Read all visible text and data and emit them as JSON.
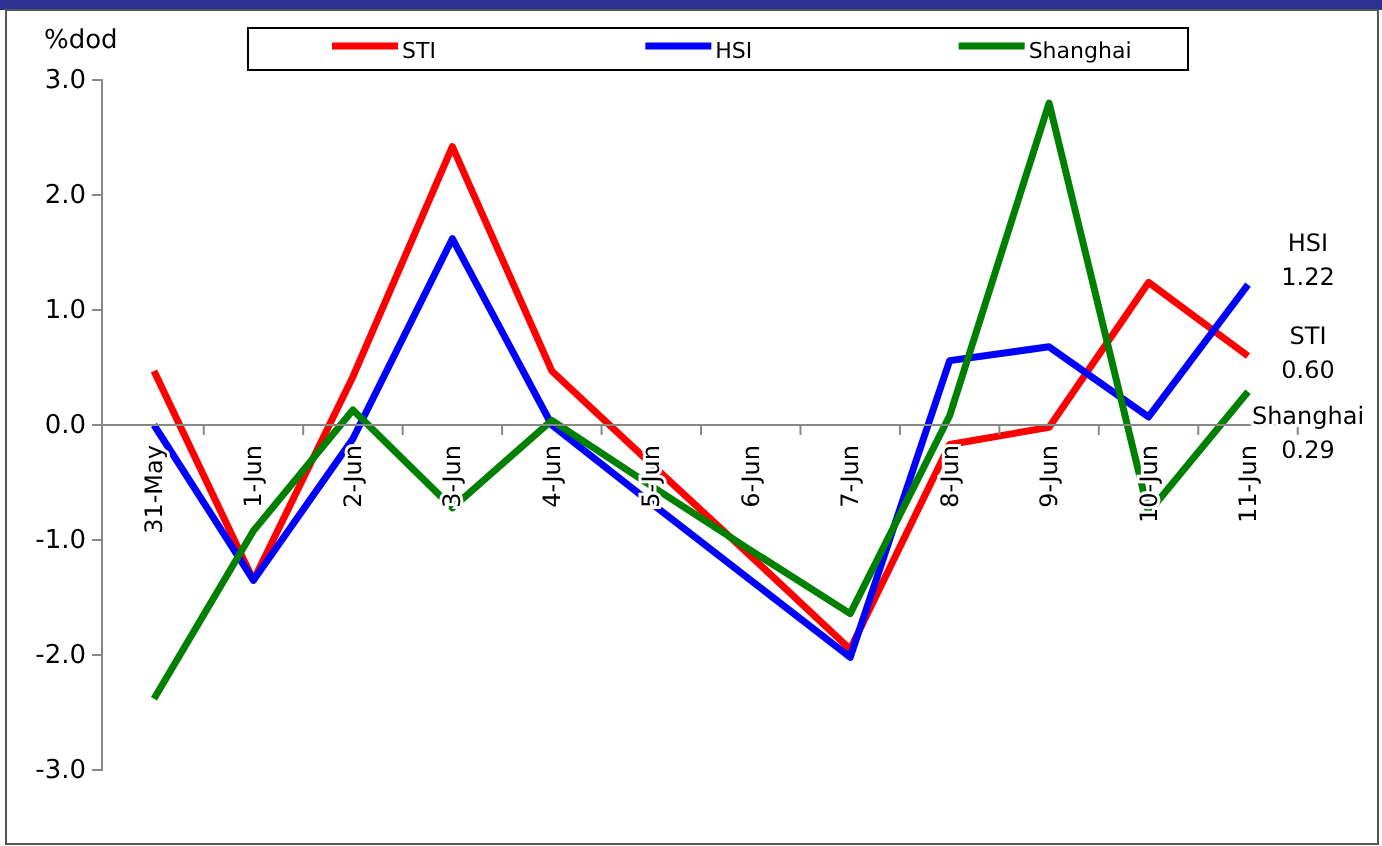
{
  "chart_data": {
    "type": "line",
    "ylabel": "%dod",
    "categories": [
      "31-May",
      "1-Jun",
      "2-Jun",
      "3-Jun",
      "4-Jun",
      "5-Jun",
      "6-Jun",
      "7-Jun",
      "8-Jun",
      "9-Jun",
      "10-Jun",
      "11-Jun"
    ],
    "series": [
      {
        "name": "STI",
        "color": "#ff0000",
        "values": [
          0.47,
          -1.35,
          0.42,
          2.42,
          0.47,
          -0.34,
          -1.14,
          -1.95,
          -0.17,
          -0.02,
          1.24,
          0.6
        ]
      },
      {
        "name": "HSI",
        "color": "#0000ff",
        "values": [
          0.0,
          -1.35,
          -0.12,
          1.62,
          0.0,
          -0.68,
          -1.35,
          -2.02,
          0.56,
          0.68,
          0.07,
          1.22
        ]
      },
      {
        "name": "Shanghai",
        "color": "#008000",
        "values": [
          -2.38,
          -0.92,
          0.13,
          -0.72,
          0.04,
          -0.53,
          -1.09,
          -1.64,
          0.08,
          2.8,
          -0.76,
          0.29
        ]
      }
    ],
    "ylim": [
      -3,
      3
    ],
    "yticks": [
      {
        "value": -3,
        "label": "-3.0"
      },
      {
        "value": -2,
        "label": "-2.0"
      },
      {
        "value": -1,
        "label": "-1.0"
      },
      {
        "value": 0,
        "label": "0.0"
      },
      {
        "value": 1,
        "label": "1.0"
      },
      {
        "value": 2,
        "label": "2.0"
      },
      {
        "value": 3,
        "label": "3.0"
      }
    ],
    "legend": "top",
    "grid": false,
    "marker": "none",
    "line_style": "solid",
    "annotations": [
      {
        "text": "HSI",
        "x": "11-Jun",
        "y": 1.22
      },
      {
        "text": "1.22",
        "x": "11-Jun",
        "y": 1.22
      },
      {
        "text": "STI",
        "x": "11-Jun",
        "y": 0.6
      },
      {
        "text": "0.60",
        "x": "11-Jun",
        "y": 0.6
      },
      {
        "text": "Shanghai",
        "x": "11-Jun",
        "y": 0.29
      },
      {
        "text": "0.29",
        "x": "11-Jun",
        "y": 0.29
      }
    ]
  }
}
